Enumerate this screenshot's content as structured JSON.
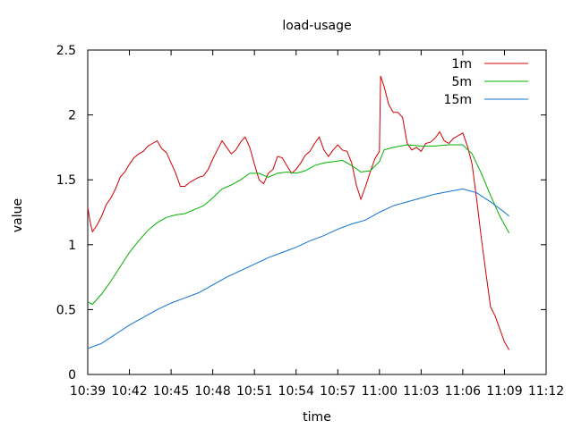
{
  "chart_data": {
    "type": "line",
    "title": "load-usage",
    "xlabel": "time",
    "ylabel": "value",
    "ylim": [
      0,
      2.5
    ],
    "xlim": [
      "10:39",
      "11:12"
    ],
    "xticks": [
      "10:39",
      "10:42",
      "10:45",
      "10:48",
      "10:51",
      "10:54",
      "10:57",
      "11:00",
      "11:03",
      "11:06",
      "11:09",
      "11:12"
    ],
    "yticks": [
      "0",
      "0.5",
      "1",
      "1.5",
      "2",
      "2.5"
    ],
    "grid": false,
    "legend_position": "top-right",
    "series": [
      {
        "name": "1m",
        "color": "#d00000",
        "points": [
          [
            "10:39:00",
            1.29
          ],
          [
            "10:39:10",
            1.18
          ],
          [
            "10:39:20",
            1.1
          ],
          [
            "10:39:40",
            1.15
          ],
          [
            "10:40:00",
            1.22
          ],
          [
            "10:40:20",
            1.31
          ],
          [
            "10:40:40",
            1.36
          ],
          [
            "10:41:00",
            1.43
          ],
          [
            "10:41:20",
            1.52
          ],
          [
            "10:41:40",
            1.56
          ],
          [
            "10:42:00",
            1.62
          ],
          [
            "10:42:20",
            1.67
          ],
          [
            "10:42:40",
            1.7
          ],
          [
            "10:43:00",
            1.72
          ],
          [
            "10:43:20",
            1.76
          ],
          [
            "10:43:40",
            1.78
          ],
          [
            "10:44:00",
            1.8
          ],
          [
            "10:44:20",
            1.74
          ],
          [
            "10:44:40",
            1.71
          ],
          [
            "10:45:00",
            1.63
          ],
          [
            "10:45:20",
            1.55
          ],
          [
            "10:45:40",
            1.45
          ],
          [
            "10:46:00",
            1.45
          ],
          [
            "10:46:20",
            1.48
          ],
          [
            "10:46:40",
            1.5
          ],
          [
            "10:47:00",
            1.52
          ],
          [
            "10:47:20",
            1.53
          ],
          [
            "10:47:40",
            1.58
          ],
          [
            "10:48:00",
            1.66
          ],
          [
            "10:48:20",
            1.73
          ],
          [
            "10:48:40",
            1.8
          ],
          [
            "10:49:00",
            1.75
          ],
          [
            "10:49:20",
            1.7
          ],
          [
            "10:49:40",
            1.73
          ],
          [
            "10:50:00",
            1.79
          ],
          [
            "10:50:20",
            1.83
          ],
          [
            "10:50:40",
            1.75
          ],
          [
            "10:51:00",
            1.62
          ],
          [
            "10:51:20",
            1.5
          ],
          [
            "10:51:40",
            1.47
          ],
          [
            "10:52:00",
            1.55
          ],
          [
            "10:52:20",
            1.58
          ],
          [
            "10:52:40",
            1.68
          ],
          [
            "10:53:00",
            1.67
          ],
          [
            "10:53:20",
            1.61
          ],
          [
            "10:53:40",
            1.55
          ],
          [
            "10:54:00",
            1.58
          ],
          [
            "10:54:20",
            1.63
          ],
          [
            "10:54:40",
            1.69
          ],
          [
            "10:55:00",
            1.72
          ],
          [
            "10:55:20",
            1.78
          ],
          [
            "10:55:40",
            1.83
          ],
          [
            "10:56:00",
            1.73
          ],
          [
            "10:56:20",
            1.68
          ],
          [
            "10:56:40",
            1.73
          ],
          [
            "10:57:00",
            1.77
          ],
          [
            "10:57:20",
            1.73
          ],
          [
            "10:57:40",
            1.72
          ],
          [
            "10:58:00",
            1.63
          ],
          [
            "10:58:20",
            1.46
          ],
          [
            "10:58:40",
            1.35
          ],
          [
            "10:59:00",
            1.45
          ],
          [
            "10:59:20",
            1.56
          ],
          [
            "10:59:40",
            1.66
          ],
          [
            "11:00:00",
            1.72
          ],
          [
            "11:00:05",
            2.3
          ],
          [
            "11:00:20",
            2.22
          ],
          [
            "11:00:40",
            2.08
          ],
          [
            "11:01:00",
            2.02
          ],
          [
            "11:01:20",
            2.02
          ],
          [
            "11:01:40",
            1.98
          ],
          [
            "11:02:00",
            1.78
          ],
          [
            "11:02:20",
            1.73
          ],
          [
            "11:02:40",
            1.75
          ],
          [
            "11:03:00",
            1.72
          ],
          [
            "11:03:20",
            1.78
          ],
          [
            "11:03:40",
            1.79
          ],
          [
            "11:04:00",
            1.82
          ],
          [
            "11:04:20",
            1.87
          ],
          [
            "11:04:40",
            1.8
          ],
          [
            "11:05:00",
            1.78
          ],
          [
            "11:05:20",
            1.82
          ],
          [
            "11:05:40",
            1.84
          ],
          [
            "11:06:00",
            1.86
          ],
          [
            "11:06:20",
            1.76
          ],
          [
            "11:06:40",
            1.62
          ],
          [
            "11:07:00",
            1.35
          ],
          [
            "11:07:20",
            1.05
          ],
          [
            "11:07:40",
            0.78
          ],
          [
            "11:08:00",
            0.52
          ],
          [
            "11:08:20",
            0.45
          ],
          [
            "11:08:40",
            0.35
          ],
          [
            "11:09:00",
            0.25
          ],
          [
            "11:09:20",
            0.19
          ]
        ]
      },
      {
        "name": "5m",
        "color": "#00b000",
        "points": [
          [
            "10:39:00",
            0.56
          ],
          [
            "10:39:20",
            0.54
          ],
          [
            "10:40:00",
            0.62
          ],
          [
            "10:40:40",
            0.72
          ],
          [
            "10:41:20",
            0.83
          ],
          [
            "10:42:00",
            0.94
          ],
          [
            "10:42:40",
            1.03
          ],
          [
            "10:43:20",
            1.11
          ],
          [
            "10:44:00",
            1.17
          ],
          [
            "10:44:40",
            1.21
          ],
          [
            "10:45:20",
            1.23
          ],
          [
            "10:46:00",
            1.24
          ],
          [
            "10:46:40",
            1.27
          ],
          [
            "10:47:20",
            1.3
          ],
          [
            "10:48:00",
            1.36
          ],
          [
            "10:48:40",
            1.43
          ],
          [
            "10:49:20",
            1.46
          ],
          [
            "10:50:00",
            1.5
          ],
          [
            "10:50:40",
            1.55
          ],
          [
            "10:51:20",
            1.55
          ],
          [
            "10:52:00",
            1.52
          ],
          [
            "10:52:40",
            1.55
          ],
          [
            "10:53:20",
            1.56
          ],
          [
            "10:54:00",
            1.55
          ],
          [
            "10:54:40",
            1.57
          ],
          [
            "10:55:20",
            1.61
          ],
          [
            "10:56:00",
            1.63
          ],
          [
            "10:56:40",
            1.64
          ],
          [
            "10:57:20",
            1.65
          ],
          [
            "10:58:00",
            1.61
          ],
          [
            "10:58:40",
            1.56
          ],
          [
            "10:59:20",
            1.57
          ],
          [
            "11:00:00",
            1.64
          ],
          [
            "11:00:20",
            1.73
          ],
          [
            "11:01:00",
            1.75
          ],
          [
            "11:02:00",
            1.77
          ],
          [
            "11:03:00",
            1.76
          ],
          [
            "11:04:00",
            1.76
          ],
          [
            "11:05:00",
            1.77
          ],
          [
            "11:06:00",
            1.77
          ],
          [
            "11:06:40",
            1.7
          ],
          [
            "11:07:20",
            1.55
          ],
          [
            "11:08:00",
            1.38
          ],
          [
            "11:08:40",
            1.22
          ],
          [
            "11:09:20",
            1.09
          ]
        ]
      },
      {
        "name": "15m",
        "color": "#1070d0",
        "points": [
          [
            "10:39:00",
            0.2
          ],
          [
            "10:40:00",
            0.24
          ],
          [
            "10:41:00",
            0.31
          ],
          [
            "10:42:00",
            0.38
          ],
          [
            "10:43:00",
            0.44
          ],
          [
            "10:44:00",
            0.5
          ],
          [
            "10:45:00",
            0.55
          ],
          [
            "10:46:00",
            0.59
          ],
          [
            "10:47:00",
            0.63
          ],
          [
            "10:48:00",
            0.69
          ],
          [
            "10:49:00",
            0.75
          ],
          [
            "10:50:00",
            0.8
          ],
          [
            "10:51:00",
            0.85
          ],
          [
            "10:52:00",
            0.9
          ],
          [
            "10:53:00",
            0.94
          ],
          [
            "10:54:00",
            0.98
          ],
          [
            "10:55:00",
            1.03
          ],
          [
            "10:56:00",
            1.07
          ],
          [
            "10:57:00",
            1.12
          ],
          [
            "10:58:00",
            1.16
          ],
          [
            "10:59:00",
            1.19
          ],
          [
            "11:00:00",
            1.25
          ],
          [
            "11:01:00",
            1.3
          ],
          [
            "11:02:00",
            1.33
          ],
          [
            "11:03:00",
            1.36
          ],
          [
            "11:04:00",
            1.39
          ],
          [
            "11:05:00",
            1.41
          ],
          [
            "11:06:00",
            1.43
          ],
          [
            "11:07:00",
            1.4
          ],
          [
            "11:08:00",
            1.33
          ],
          [
            "11:09:00",
            1.25
          ],
          [
            "11:09:20",
            1.22
          ]
        ]
      }
    ]
  }
}
